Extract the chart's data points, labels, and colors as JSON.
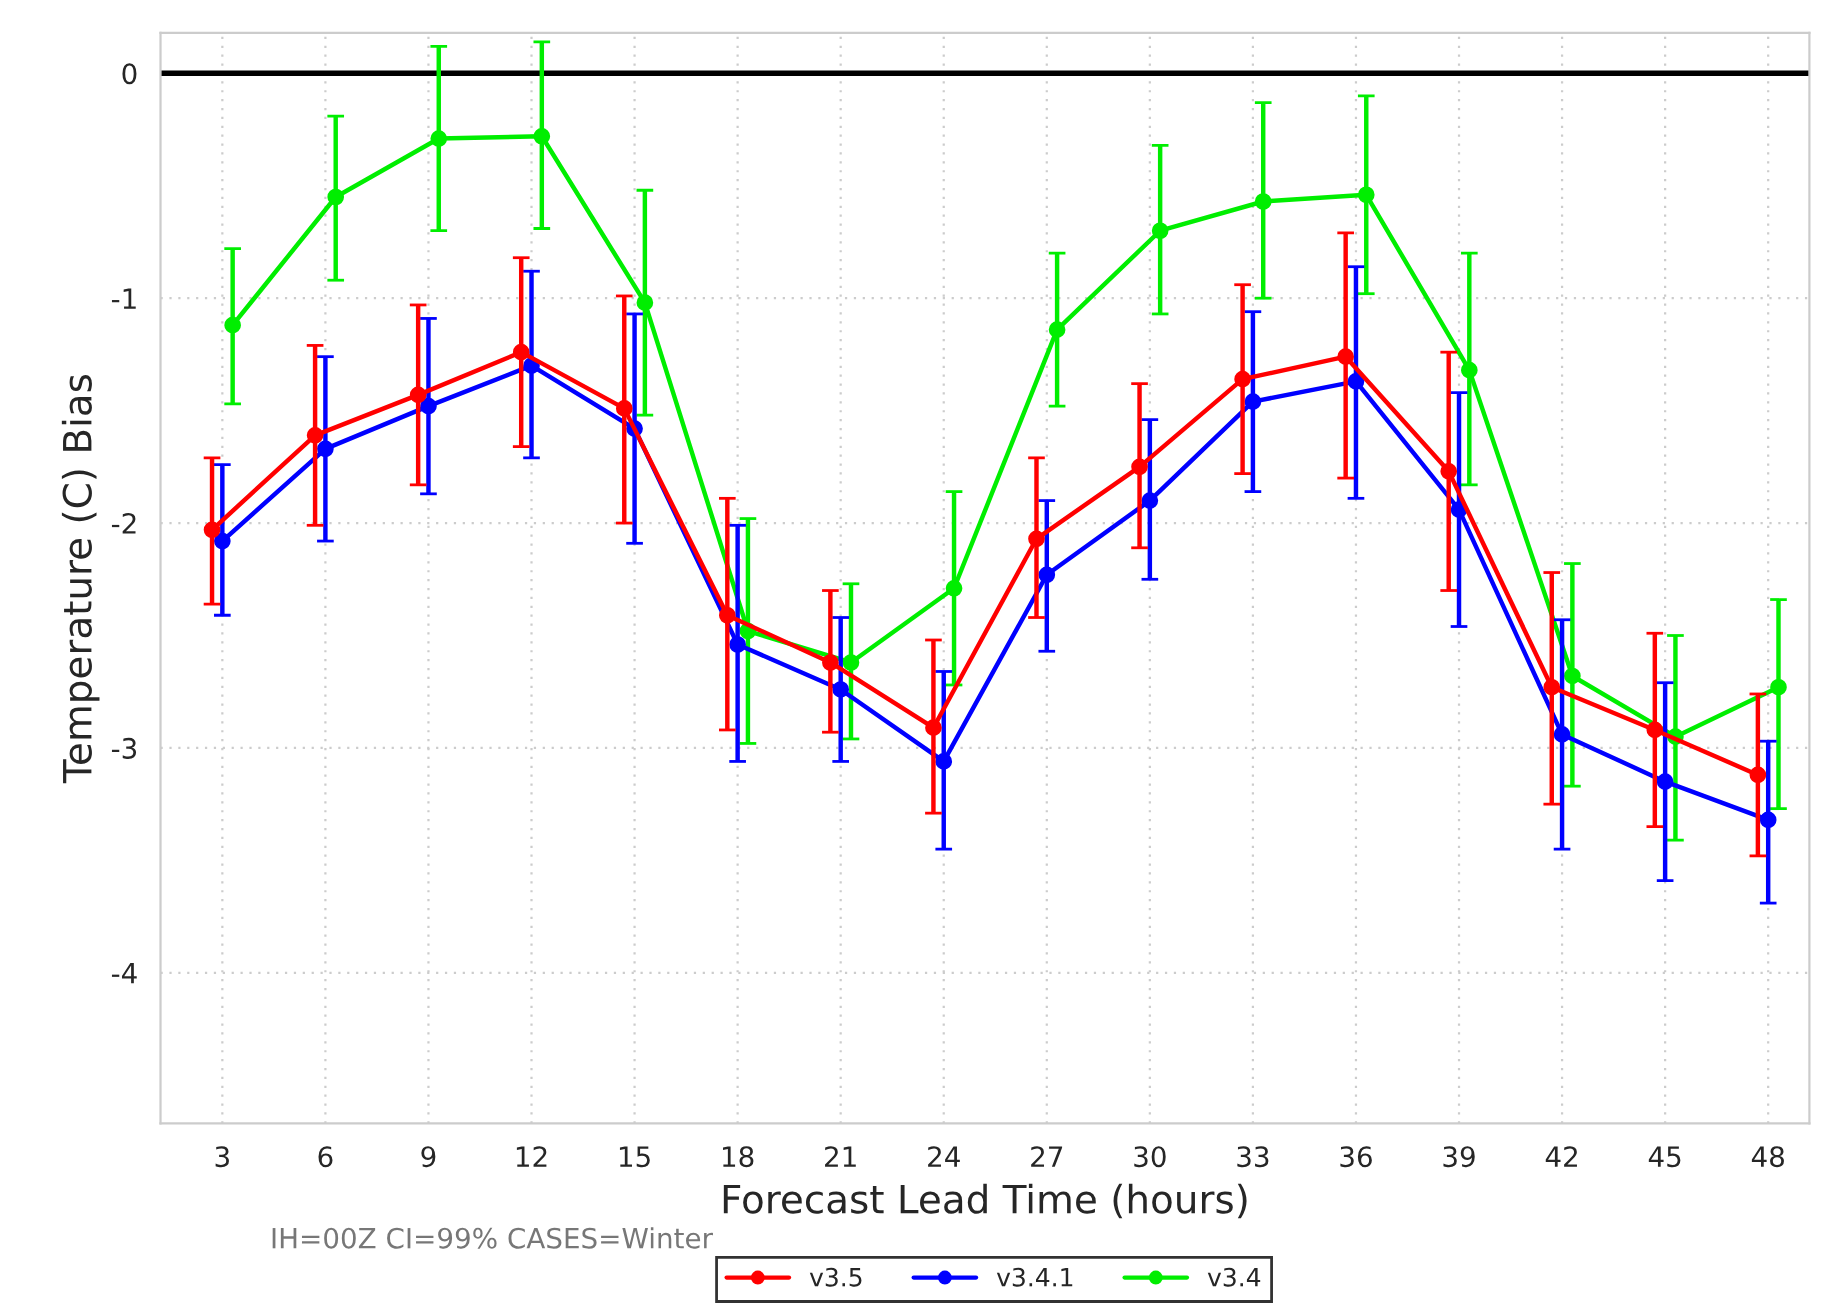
{
  "chart_data": {
    "type": "line",
    "xlabel": "Forecast Lead Time (hours)",
    "ylabel": "Temperature (C) Bias",
    "categories": [
      "3",
      "6",
      "9",
      "12",
      "15",
      "18",
      "21",
      "24",
      "27",
      "30",
      "33",
      "36",
      "39",
      "42",
      "45",
      "48"
    ],
    "series": [
      {
        "name": "v3.5",
        "color": "#ff0000",
        "values": [
          -2.03,
          -1.61,
          -1.43,
          -1.24,
          -1.49,
          -2.41,
          -2.62,
          -2.91,
          -2.07,
          -1.75,
          -1.36,
          -1.26,
          -1.77,
          -2.73,
          -2.92,
          -3.12
        ],
        "errors": [
          [
            -2.36,
            -1.71
          ],
          [
            -2.01,
            -1.21
          ],
          [
            -1.83,
            -1.03
          ],
          [
            -1.66,
            -0.82
          ],
          [
            -2.0,
            -0.99
          ],
          [
            -2.92,
            -1.89
          ],
          [
            -2.93,
            -2.3
          ],
          [
            -3.29,
            -2.52
          ],
          [
            -2.42,
            -1.71
          ],
          [
            -2.11,
            -1.38
          ],
          [
            -1.78,
            -0.94
          ],
          [
            -1.8,
            -0.71
          ],
          [
            -2.3,
            -1.24
          ],
          [
            -3.25,
            -2.22
          ],
          [
            -3.35,
            -2.49
          ],
          [
            -3.48,
            -2.76
          ]
        ]
      },
      {
        "name": "v3.4.1",
        "color": "#0000ff",
        "values": [
          -2.08,
          -1.67,
          -1.48,
          -1.3,
          -1.58,
          -2.54,
          -2.74,
          -3.06,
          -2.23,
          -1.9,
          -1.46,
          -1.37,
          -1.94,
          -2.94,
          -3.15,
          -3.32
        ],
        "errors": [
          [
            -2.41,
            -1.74
          ],
          [
            -2.08,
            -1.26
          ],
          [
            -1.87,
            -1.09
          ],
          [
            -1.71,
            -0.88
          ],
          [
            -2.09,
            -1.07
          ],
          [
            -3.06,
            -2.01
          ],
          [
            -3.06,
            -2.42
          ],
          [
            -3.45,
            -2.66
          ],
          [
            -2.57,
            -1.9
          ],
          [
            -2.25,
            -1.54
          ],
          [
            -1.86,
            -1.06
          ],
          [
            -1.89,
            -0.86
          ],
          [
            -2.46,
            -1.42
          ],
          [
            -3.45,
            -2.43
          ],
          [
            -3.59,
            -2.71
          ],
          [
            -3.69,
            -2.97
          ]
        ]
      },
      {
        "name": "v3.4",
        "color": "#00ee00",
        "values": [
          -1.12,
          -0.55,
          -0.29,
          -0.28,
          -1.02,
          -2.48,
          -2.62,
          -2.29,
          -1.14,
          -0.7,
          -0.57,
          -0.54,
          -1.32,
          -2.68,
          -2.95,
          -2.73
        ],
        "errors": [
          [
            -1.47,
            -0.78
          ],
          [
            -0.92,
            -0.19
          ],
          [
            -0.7,
            0.12
          ],
          [
            -0.69,
            0.14
          ],
          [
            -1.52,
            -0.52
          ],
          [
            -2.98,
            -1.98
          ],
          [
            -2.96,
            -2.27
          ],
          [
            -2.72,
            -1.86
          ],
          [
            -1.48,
            -0.8
          ],
          [
            -1.07,
            -0.32
          ],
          [
            -1.0,
            -0.13
          ],
          [
            -0.98,
            -0.1
          ],
          [
            -1.83,
            -0.8
          ],
          [
            -3.17,
            -2.18
          ],
          [
            -3.41,
            -2.5
          ],
          [
            -3.27,
            -2.34
          ]
        ]
      }
    ],
    "ylim": [
      -4.67,
      0.18
    ],
    "yticks": [
      -4,
      -3,
      -2,
      -1,
      0
    ],
    "ref_lines": [
      {
        "axis": "y",
        "value": 0,
        "color": "#000000"
      }
    ],
    "annotations": [
      "IH=00Z CI=99% CASES=Winter"
    ],
    "grid": true,
    "legend": "bottom",
    "marker": "circle",
    "line_style": "solid"
  }
}
